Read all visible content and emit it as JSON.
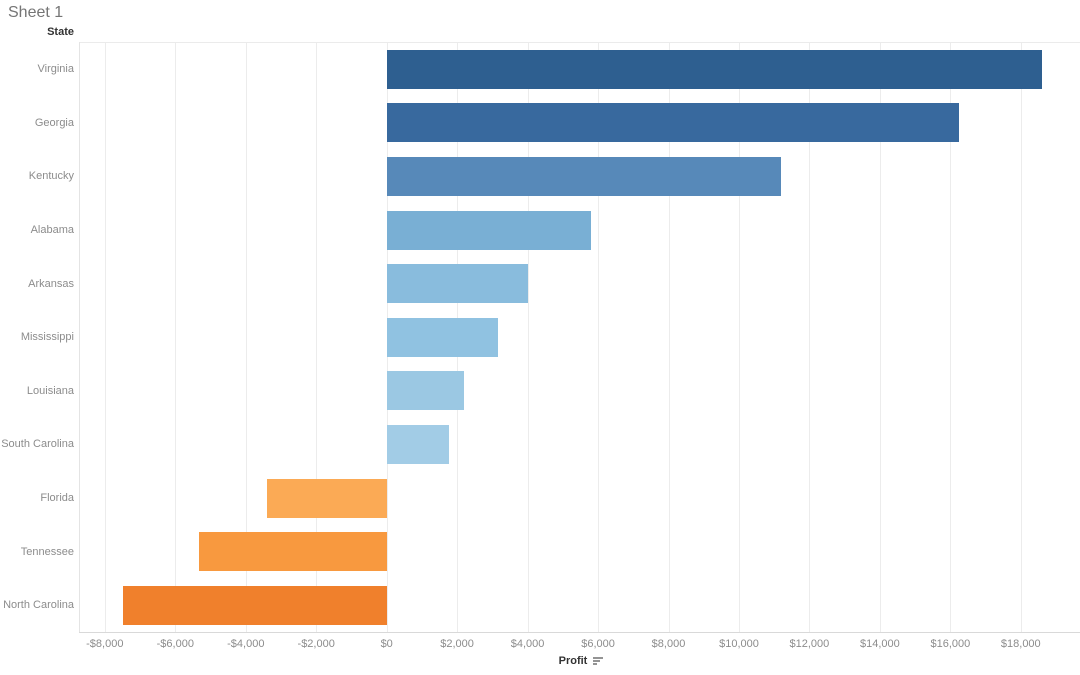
{
  "title": "Sheet 1",
  "row_header": "State",
  "axis": {
    "title": "Profit",
    "tick_labels": [
      "-$8,000",
      "-$6,000",
      "-$4,000",
      "-$2,000",
      "$0",
      "$2,000",
      "$4,000",
      "$6,000",
      "$8,000",
      "$10,000",
      "$12,000",
      "$14,000",
      "$16,000",
      "$18,000"
    ]
  },
  "colors": {
    "grid": "#ececec",
    "axis_line": "#d9d9d9",
    "label_text": "#8c8c8c",
    "header_text": "#333333",
    "title_text": "#757575"
  },
  "chart_data": {
    "type": "bar",
    "orientation": "horizontal",
    "title": "Sheet 1",
    "xlabel": "Profit",
    "ylabel": "State",
    "categories": [
      "Virginia",
      "Georgia",
      "Kentucky",
      "Alabama",
      "Arkansas",
      "Mississippi",
      "Louisiana",
      "South Carolina",
      "Florida",
      "Tennessee",
      "North Carolina"
    ],
    "values": [
      18598,
      16250,
      11199,
      5787,
      4009,
      3173,
      2196,
      1769,
      -3399,
      -5342,
      -7491
    ],
    "bar_colors": [
      "#2e5f90",
      "#38699e",
      "#5789b9",
      "#79afd4",
      "#89bcdd",
      "#90c2e1",
      "#9bc8e3",
      "#a2cce6",
      "#fbaa55",
      "#f8993f",
      "#f0802c"
    ],
    "x_ticks": [
      -8000,
      -6000,
      -4000,
      -2000,
      0,
      2000,
      4000,
      6000,
      8000,
      10000,
      12000,
      14000,
      16000,
      18000
    ],
    "xlim": [
      -8620,
      19680
    ],
    "grid": true,
    "legend": false,
    "sort": "descending"
  }
}
